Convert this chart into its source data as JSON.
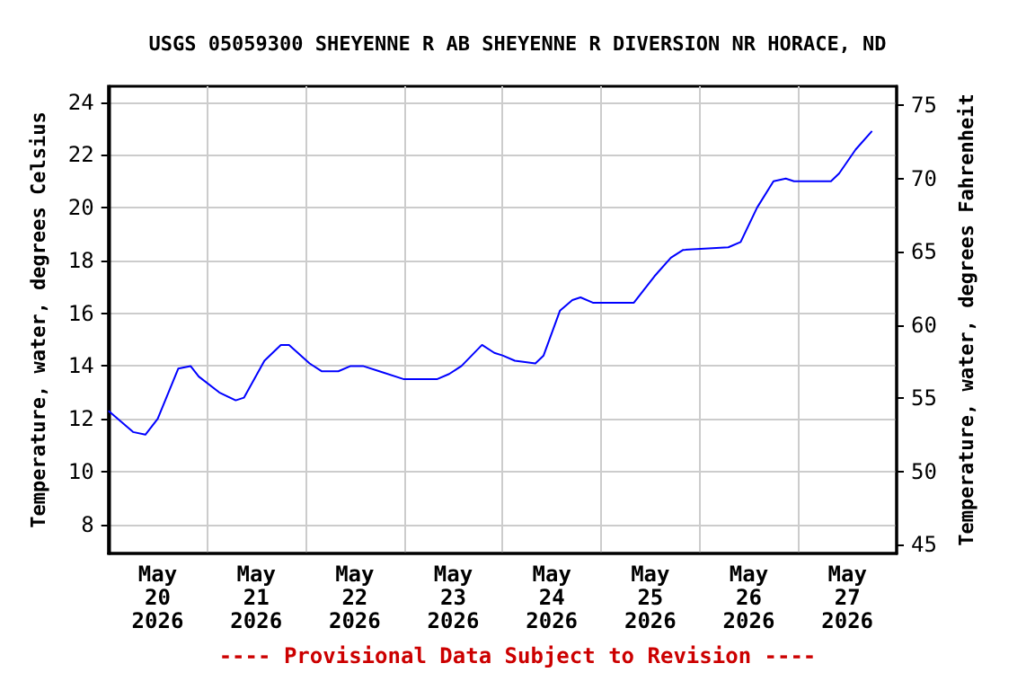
{
  "chart_data": {
    "type": "line",
    "title": "USGS 05059300 SHEYENNE R AB SHEYENNE R DIVERSION NR HORACE, ND",
    "ylabel": "Temperature, water, degrees Celsius",
    "y2label": "Temperature, water, degrees Fahrenheit",
    "annotations": [
      "---- Provisional Data Subject to Revision ----"
    ],
    "xlim": [
      "2026-05-20",
      "2026-05-28"
    ],
    "xticks": [
      {
        "value": "2026-05-20T12:00",
        "label": "May\n20\n2026"
      },
      {
        "value": "2026-05-21T12:00",
        "label": "May\n21\n2026"
      },
      {
        "value": "2026-05-22T12:00",
        "label": "May\n22\n2026"
      },
      {
        "value": "2026-05-23T12:00",
        "label": "May\n23\n2026"
      },
      {
        "value": "2026-05-24T12:00",
        "label": "May\n24\n2026"
      },
      {
        "value": "2026-05-25T12:00",
        "label": "May\n25\n2026"
      },
      {
        "value": "2026-05-26T12:00",
        "label": "May\n26\n2026"
      },
      {
        "value": "2026-05-27T12:00",
        "label": "May\n27\n2026"
      },
      {
        "value": "2026-05-21",
        "label": null
      },
      {
        "value": "2026-05-22",
        "label": null
      },
      {
        "value": "2026-05-23",
        "label": null
      },
      {
        "value": "2026-05-24",
        "label": null
      },
      {
        "value": "2026-05-25",
        "label": null
      },
      {
        "value": "2026-05-26",
        "label": null
      },
      {
        "value": "2026-05-27",
        "label": null
      }
    ],
    "ylim": [
      6.9,
      24.6
    ],
    "yticks": [
      8,
      10,
      12,
      14,
      16,
      18,
      20,
      22,
      24
    ],
    "y2lim": [
      44.4,
      76.3
    ],
    "y2ticks": [
      45,
      50,
      55,
      60,
      65,
      70,
      75
    ],
    "grid": true,
    "marker": "none",
    "line_style": "solid",
    "x": [
      "2026-05-20T00:00",
      "2026-05-20T06:00",
      "2026-05-20T09:00",
      "2026-05-20T12:00",
      "2026-05-20T17:00",
      "2026-05-20T20:00",
      "2026-05-20T22:00",
      "2026-05-21T03:00",
      "2026-05-21T07:00",
      "2026-05-21T09:00",
      "2026-05-21T14:00",
      "2026-05-21T18:00",
      "2026-05-21T20:00",
      "2026-05-22T01:00",
      "2026-05-22T04:00",
      "2026-05-22T08:00",
      "2026-05-22T11:00",
      "2026-05-22T14:00",
      "2026-05-22T18:00",
      "2026-05-23T00:00",
      "2026-05-23T08:00",
      "2026-05-23T11:00",
      "2026-05-23T14:00",
      "2026-05-23T19:00",
      "2026-05-23T22:00",
      "2026-05-24T00:00",
      "2026-05-24T03:00",
      "2026-05-24T08:00",
      "2026-05-24T10:00",
      "2026-05-24T14:00",
      "2026-05-24T17:00",
      "2026-05-24T19:00",
      "2026-05-24T22:00",
      "2026-05-25T08:00",
      "2026-05-25T13:00",
      "2026-05-25T17:00",
      "2026-05-25T20:00",
      "2026-05-26T07:00",
      "2026-05-26T10:00",
      "2026-05-26T14:00",
      "2026-05-26T18:00",
      "2026-05-26T21:00",
      "2026-05-26T23:00",
      "2026-05-27T05:00",
      "2026-05-27T08:00",
      "2026-05-27T10:00",
      "2026-05-27T14:00",
      "2026-05-27T18:00"
    ],
    "series": [
      {
        "color": "#0000ff",
        "values": [
          12.3,
          11.5,
          11.4,
          12.0,
          13.9,
          14.0,
          13.6,
          13.0,
          12.7,
          12.8,
          14.2,
          14.8,
          14.8,
          14.1,
          13.8,
          13.8,
          14.0,
          14.0,
          13.8,
          13.5,
          13.5,
          13.7,
          14.0,
          14.8,
          14.5,
          14.4,
          14.2,
          14.1,
          14.4,
          16.1,
          16.5,
          16.6,
          16.4,
          16.4,
          17.4,
          18.1,
          18.4,
          18.5,
          18.7,
          20.0,
          21.0,
          21.1,
          21.0,
          21.0,
          21.0,
          21.3,
          22.2,
          22.9
        ]
      }
    ]
  }
}
